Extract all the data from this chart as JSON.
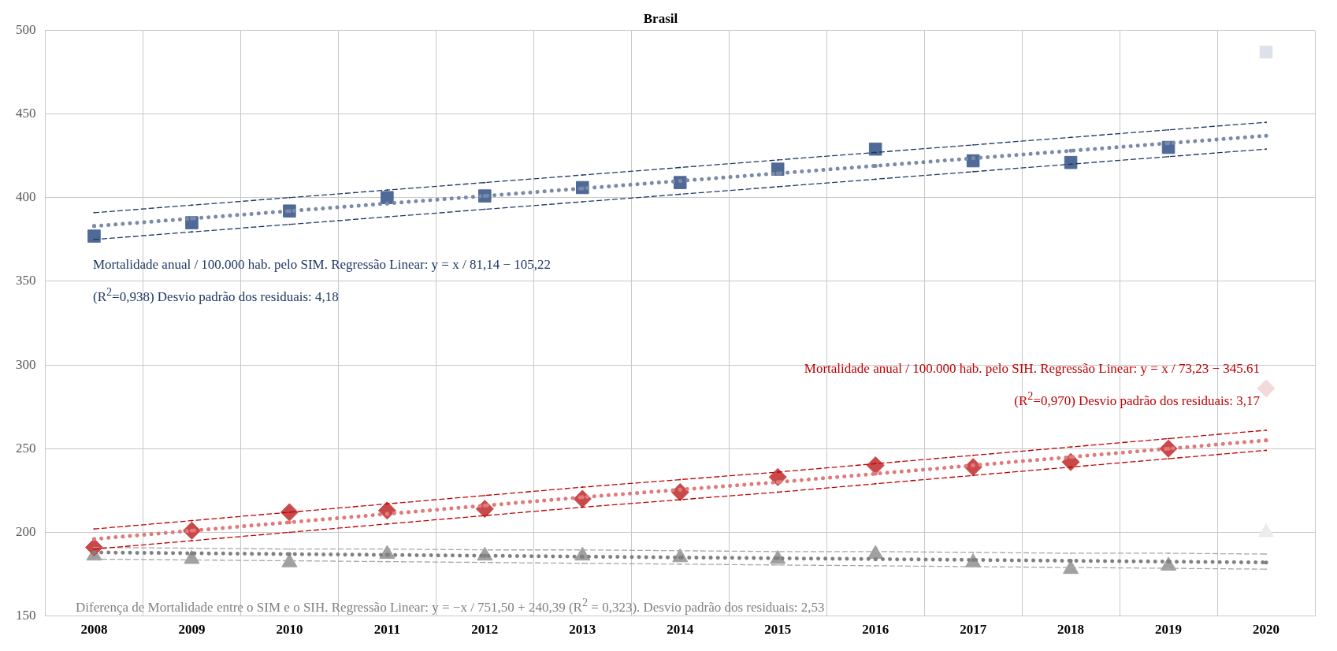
{
  "chart_data": {
    "type": "scatter",
    "title": "Brasil",
    "categories": [
      "2008",
      "2009",
      "2010",
      "2011",
      "2012",
      "2013",
      "2014",
      "2015",
      "2016",
      "2017",
      "2018",
      "2019",
      "2020"
    ],
    "ylim": [
      150,
      500
    ],
    "yticks": [
      150,
      200,
      250,
      300,
      350,
      400,
      450,
      500
    ],
    "grid": true,
    "series": [
      {
        "marker": "square",
        "color": "#4f6a96",
        "colors": [
          "#4f6a96",
          "#4f6a96",
          "#4f6a96",
          "#4f6a96",
          "#4f6a96",
          "#4f6a96",
          "#4f6a96",
          "#4f6a96",
          "#4f6a96",
          "#4f6a96",
          "#4f6a96",
          "#4f6a96",
          "#dde2ea"
        ],
        "values": [
          377,
          385,
          392,
          400,
          401,
          406,
          409,
          417,
          429,
          422,
          421,
          430,
          487
        ]
      },
      {
        "marker": "diamond",
        "color": "#c9494a",
        "colors": [
          "#c9494a",
          "#c9494a",
          "#c9494a",
          "#c9494a",
          "#c9494a",
          "#c9494a",
          "#c9494a",
          "#c9494a",
          "#c9494a",
          "#c9494a",
          "#c9494a",
          "#c9494a",
          "#f3dada"
        ],
        "values": [
          191,
          201,
          212,
          213,
          214,
          220,
          224,
          233,
          240,
          239,
          242,
          250,
          286
        ]
      },
      {
        "marker": "triangle",
        "color": "#a0a0a0",
        "colors": [
          "#a0a0a0",
          "#a0a0a0",
          "#a0a0a0",
          "#a0a0a0",
          "#a0a0a0",
          "#a0a0a0",
          "#a0a0a0",
          "#a0a0a0",
          "#a0a0a0",
          "#a0a0a0",
          "#a0a0a0",
          "#a0a0a0",
          "#ececec"
        ],
        "values": [
          186,
          184,
          182,
          187,
          186,
          186,
          185,
          184,
          187,
          182,
          178,
          180,
          200
        ]
      },
      {
        "type": "line",
        "line_style": "dotted",
        "color": "#7a8aa8",
        "values": [
          383,
          387.5,
          392,
          396.5,
          401,
          405.5,
          410,
          414.5,
          419,
          423.5,
          428,
          432.5,
          437
        ]
      },
      {
        "type": "line",
        "line_style": "dashed",
        "color": "#1f3864",
        "values": [
          391,
          395.5,
          400,
          404.5,
          409,
          413.5,
          418,
          422.5,
          427,
          431.5,
          436,
          440.5,
          445
        ]
      },
      {
        "type": "line",
        "line_style": "dashed",
        "color": "#1f3864",
        "values": [
          375,
          379.5,
          384,
          388.5,
          393,
          397.5,
          402,
          406.5,
          411,
          415.5,
          420,
          424.5,
          429
        ]
      },
      {
        "type": "line",
        "line_style": "dotted",
        "color": "#e07b7b",
        "values": [
          196,
          201,
          206,
          211,
          216,
          221,
          225.5,
          230,
          235,
          240,
          245,
          250,
          255
        ]
      },
      {
        "type": "line",
        "line_style": "dashed",
        "color": "#c00000",
        "values": [
          202,
          207,
          212,
          217,
          222,
          227,
          231.5,
          236,
          241,
          246,
          251,
          256,
          261
        ]
      },
      {
        "type": "line",
        "line_style": "dashed",
        "color": "#c00000",
        "values": [
          190,
          195,
          200,
          205,
          210,
          215,
          219.5,
          224,
          229,
          234,
          239,
          244,
          249
        ]
      },
      {
        "type": "line",
        "line_style": "dotted",
        "color": "#808080",
        "values": [
          188,
          187.5,
          187,
          186.5,
          186,
          185.5,
          185,
          184.5,
          184,
          183.5,
          183,
          182.5,
          182
        ]
      },
      {
        "type": "line",
        "line_style": "dashed",
        "color": "#a6a6a6",
        "values": [
          191,
          190.5,
          190,
          190,
          189.5,
          189.5,
          189,
          188.5,
          188.5,
          188,
          187.5,
          187.5,
          187
        ]
      },
      {
        "type": "line",
        "line_style": "dashed",
        "color": "#a6a6a6",
        "values": [
          184,
          183.5,
          183,
          182.5,
          182,
          181.5,
          181,
          180.5,
          180,
          179.5,
          179,
          178.5,
          178
        ]
      }
    ],
    "annotations": [
      "Mortalidade anual / 100.000 hab. pelo SIM. Regressão Linear: y = x / 81,14 − 105,22",
      "(R$^{2}$=0,938) Desvio padrão dos residuais: 4,18",
      "Mortalidade anual / 100.000 hab. pelo SIH. Regressão Linear: y = x / 73,23 − 345.61",
      "(R$^{2}$=0,970) Desvio padrão dos residuais: 3,17",
      "Diferença de Mortalidade entre o SIM e o SIH. Regressão Linear: y = −x / 751,50 + 240,39 (R$^{2}$ = 0,323). Desvio padrão dos residuais: 2,53"
    ]
  }
}
